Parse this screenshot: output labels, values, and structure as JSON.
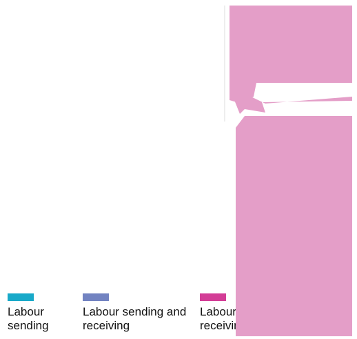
{
  "legend": {
    "items": [
      {
        "label": "Labour sending",
        "color": "#18a9c9"
      },
      {
        "label": "Labour sending and receiving",
        "color": "#7283c1"
      },
      {
        "label": "Labour receiving",
        "color": "#d33d96"
      }
    ]
  }
}
